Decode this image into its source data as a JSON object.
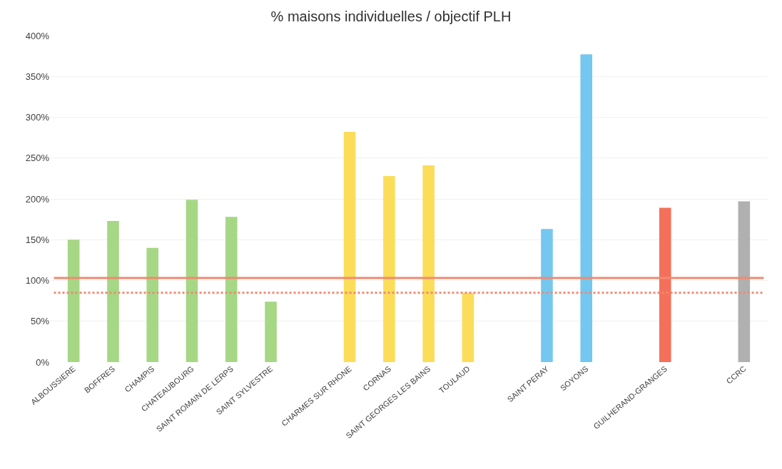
{
  "chart_data": {
    "type": "bar",
    "title": "% maisons individuelles / objectif PLH",
    "categories": [
      "ALBOUSSIERE",
      "BOFFRES",
      "CHAMPIS",
      "CHATEAUBOURG",
      "SAINT ROMAIN DE LERPS",
      "SAINT SYLVESTRE",
      null,
      "CHARMES SUR RHONE",
      "CORNAS",
      "SAINT GEORGES LES BAINS",
      "TOULAUD",
      null,
      "SAINT PERAY",
      "SOYONS",
      null,
      "GUILHERAND-GRANGES",
      null,
      "CCRC"
    ],
    "values": [
      150,
      173,
      140,
      199,
      178,
      74,
      null,
      282,
      228,
      241,
      85,
      null,
      163,
      377,
      null,
      189,
      null,
      197
    ],
    "colors": [
      "#a6d785",
      "#a6d785",
      "#a6d785",
      "#a6d785",
      "#a6d785",
      "#a6d785",
      "#ffffff",
      "#fbdd5a",
      "#fbdd5a",
      "#fbdd5a",
      "#fbdd5a",
      "#ffffff",
      "#74c7ef",
      "#74c7ef",
      "#ffffff",
      "#f4705a",
      "#ffffff",
      "#b0b0b0"
    ],
    "ylim": [
      0,
      400
    ],
    "yticks": [
      {
        "value": 0,
        "label": "0%"
      },
      {
        "value": 50,
        "label": "50%"
      },
      {
        "value": 100,
        "label": "100%"
      },
      {
        "value": 150,
        "label": "150%"
      },
      {
        "value": 200,
        "label": "200%"
      },
      {
        "value": 250,
        "label": "250%"
      },
      {
        "value": 300,
        "label": "300%"
      },
      {
        "value": 350,
        "label": "350%"
      },
      {
        "value": 400,
        "label": "400%"
      }
    ],
    "ref_lines": [
      {
        "axis": "y",
        "value": 103,
        "label": null,
        "color": "#f08a70",
        "line_style": "solid"
      },
      {
        "axis": "y",
        "value": 85,
        "label": null,
        "color": "#f08a70",
        "line_style": "dotted"
      }
    ],
    "grid": "y",
    "legend": false
  }
}
